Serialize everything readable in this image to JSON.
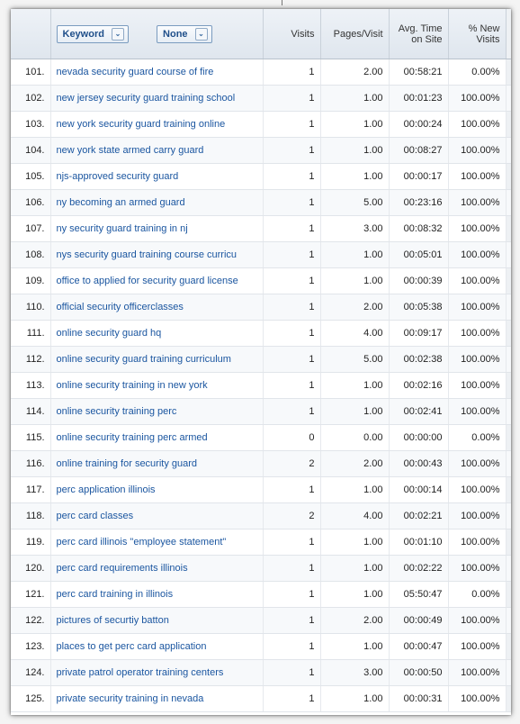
{
  "header": {
    "keyword_label": "Keyword",
    "secondary_label": "None",
    "dropdown_glyph": "⌄",
    "cols": {
      "visits": "Visits",
      "pages_visit": "Pages/Visit",
      "avg_time_l1": "Avg. Time",
      "avg_time_l2": "on Site",
      "new_visits_l1": "% New",
      "new_visits_l2": "Visits"
    }
  },
  "rows": [
    {
      "idx": "101.",
      "keyword": "nevada security guard course of fire",
      "visits": "1",
      "pages": "2.00",
      "time": "00:58:21",
      "new": "0.00%"
    },
    {
      "idx": "102.",
      "keyword": "new jersey security guard training school",
      "visits": "1",
      "pages": "1.00",
      "time": "00:01:23",
      "new": "100.00%"
    },
    {
      "idx": "103.",
      "keyword": "new york security guard training online",
      "visits": "1",
      "pages": "1.00",
      "time": "00:00:24",
      "new": "100.00%"
    },
    {
      "idx": "104.",
      "keyword": "new york state armed carry guard",
      "visits": "1",
      "pages": "1.00",
      "time": "00:08:27",
      "new": "100.00%"
    },
    {
      "idx": "105.",
      "keyword": "njs-approved security guard",
      "visits": "1",
      "pages": "1.00",
      "time": "00:00:17",
      "new": "100.00%"
    },
    {
      "idx": "106.",
      "keyword": "ny becoming an armed guard",
      "visits": "1",
      "pages": "5.00",
      "time": "00:23:16",
      "new": "100.00%"
    },
    {
      "idx": "107.",
      "keyword": "ny security guard training in nj",
      "visits": "1",
      "pages": "3.00",
      "time": "00:08:32",
      "new": "100.00%"
    },
    {
      "idx": "108.",
      "keyword": "nys security guard training course curricu",
      "visits": "1",
      "pages": "1.00",
      "time": "00:05:01",
      "new": "100.00%"
    },
    {
      "idx": "109.",
      "keyword": "office to applied for security guard license",
      "visits": "1",
      "pages": "1.00",
      "time": "00:00:39",
      "new": "100.00%"
    },
    {
      "idx": "110.",
      "keyword": "official security officerclasses",
      "visits": "1",
      "pages": "2.00",
      "time": "00:05:38",
      "new": "100.00%"
    },
    {
      "idx": "111.",
      "keyword": "online security guard hq",
      "visits": "1",
      "pages": "4.00",
      "time": "00:09:17",
      "new": "100.00%"
    },
    {
      "idx": "112.",
      "keyword": "online security guard training curriculum",
      "visits": "1",
      "pages": "5.00",
      "time": "00:02:38",
      "new": "100.00%"
    },
    {
      "idx": "113.",
      "keyword": "online security training in new york",
      "visits": "1",
      "pages": "1.00",
      "time": "00:02:16",
      "new": "100.00%"
    },
    {
      "idx": "114.",
      "keyword": "online security training perc",
      "visits": "1",
      "pages": "1.00",
      "time": "00:02:41",
      "new": "100.00%"
    },
    {
      "idx": "115.",
      "keyword": "online security training perc armed",
      "visits": "0",
      "pages": "0.00",
      "time": "00:00:00",
      "new": "0.00%"
    },
    {
      "idx": "116.",
      "keyword": "online training for security guard",
      "visits": "2",
      "pages": "2.00",
      "time": "00:00:43",
      "new": "100.00%"
    },
    {
      "idx": "117.",
      "keyword": "perc application illinois",
      "visits": "1",
      "pages": "1.00",
      "time": "00:00:14",
      "new": "100.00%"
    },
    {
      "idx": "118.",
      "keyword": "perc card classes",
      "visits": "2",
      "pages": "4.00",
      "time": "00:02:21",
      "new": "100.00%"
    },
    {
      "idx": "119.",
      "keyword": "perc card illinois \"employee statement\"",
      "visits": "1",
      "pages": "1.00",
      "time": "00:01:10",
      "new": "100.00%"
    },
    {
      "idx": "120.",
      "keyword": "perc card requirements illinois",
      "visits": "1",
      "pages": "1.00",
      "time": "00:02:22",
      "new": "100.00%"
    },
    {
      "idx": "121.",
      "keyword": "perc card training in illinois",
      "visits": "1",
      "pages": "1.00",
      "time": "05:50:47",
      "new": "0.00%"
    },
    {
      "idx": "122.",
      "keyword": "pictures of securtiy batton",
      "visits": "1",
      "pages": "2.00",
      "time": "00:00:49",
      "new": "100.00%"
    },
    {
      "idx": "123.",
      "keyword": "places to get perc card application",
      "visits": "1",
      "pages": "1.00",
      "time": "00:00:47",
      "new": "100.00%"
    },
    {
      "idx": "124.",
      "keyword": "private patrol operator training centers",
      "visits": "1",
      "pages": "3.00",
      "time": "00:00:50",
      "new": "100.00%"
    },
    {
      "idx": "125.",
      "keyword": "private security training in nevada",
      "visits": "1",
      "pages": "1.00",
      "time": "00:00:31",
      "new": "100.00%"
    }
  ],
  "colors": {
    "link": "#1b56a0",
    "header_bg": "#e6ecf3",
    "row_alt": "#f7f9fb"
  }
}
